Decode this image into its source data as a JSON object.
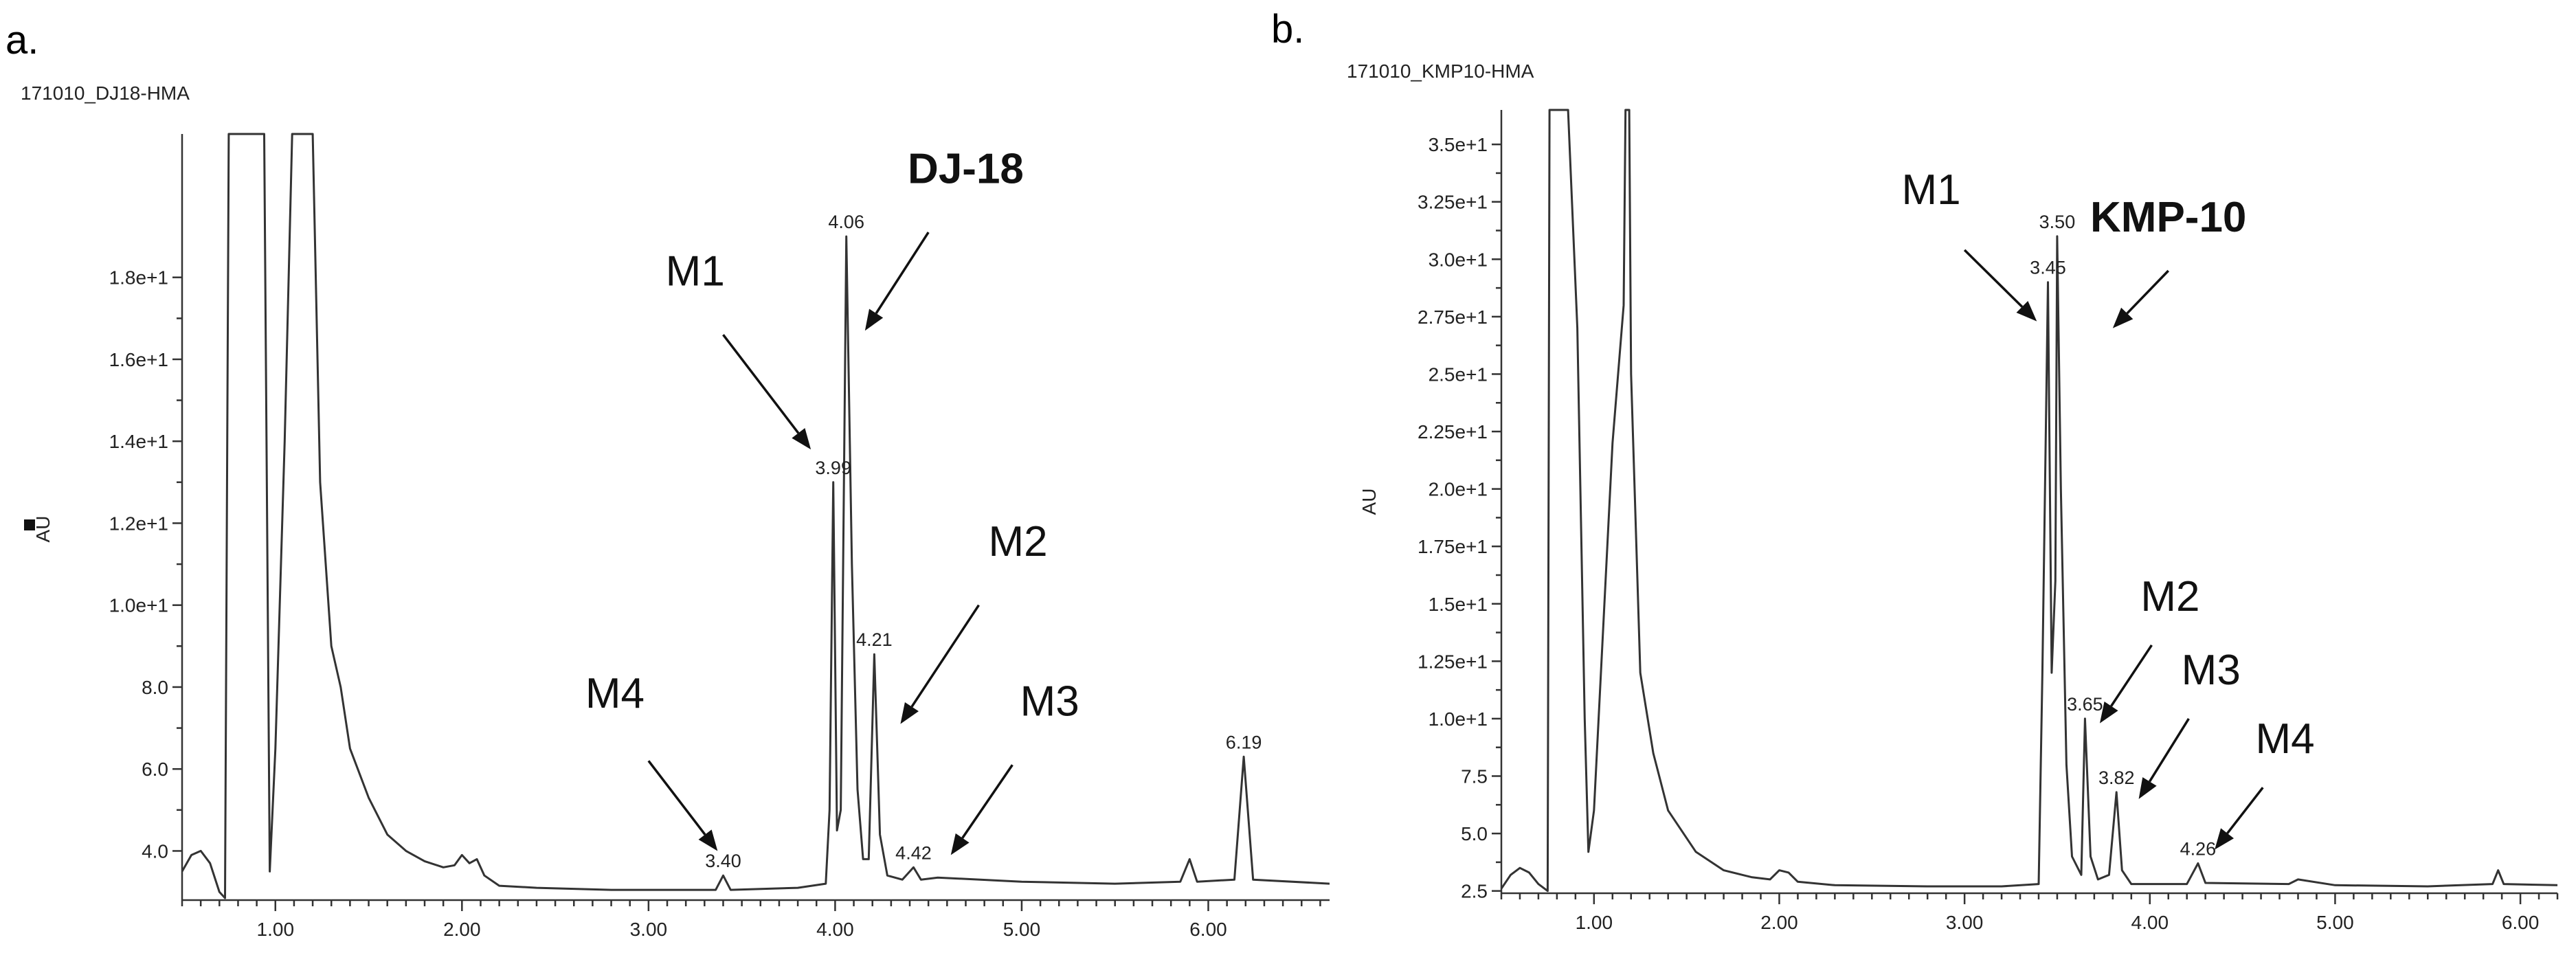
{
  "chart_data": [
    {
      "type": "line",
      "panel_label": "a.",
      "sample_id": "171010_DJ18-HMA",
      "ylabel": "AU",
      "xlim": [
        0.5,
        6.65
      ],
      "ylim": [
        2.8,
        21.5
      ],
      "x_ticks": [
        1.0,
        2.0,
        3.0,
        4.0,
        5.0,
        6.0
      ],
      "x_tick_labels": [
        "1.00",
        "2.00",
        "3.00",
        "4.00",
        "5.00",
        "6.00"
      ],
      "y_ticks": [
        4.0,
        6.0,
        8.0,
        10.0,
        12.0,
        14.0,
        16.0,
        18.0
      ],
      "y_tick_labels": [
        "4.0",
        "6.0",
        "8.0",
        "1.0e+1",
        "1.2e+1",
        "1.4e+1",
        "1.6e+1",
        "1.8e+1"
      ],
      "baseline": 3.1,
      "series": [
        {
          "name": "chromatogram",
          "points": [
            [
              0.5,
              3.5
            ],
            [
              0.55,
              3.9
            ],
            [
              0.6,
              4.0
            ],
            [
              0.65,
              3.7
            ],
            [
              0.7,
              3.0
            ],
            [
              0.73,
              2.85
            ],
            [
              0.75,
              21.5
            ],
            [
              0.94,
              21.5
            ],
            [
              0.97,
              3.5
            ],
            [
              1.0,
              6.5
            ],
            [
              1.05,
              14.0
            ],
            [
              1.09,
              21.5
            ],
            [
              1.2,
              21.5
            ],
            [
              1.24,
              13.0
            ],
            [
              1.3,
              9.0
            ],
            [
              1.35,
              8.0
            ],
            [
              1.4,
              6.5
            ],
            [
              1.5,
              5.3
            ],
            [
              1.6,
              4.4
            ],
            [
              1.7,
              4.0
            ],
            [
              1.8,
              3.75
            ],
            [
              1.9,
              3.6
            ],
            [
              1.96,
              3.65
            ],
            [
              2.0,
              3.9
            ],
            [
              2.04,
              3.7
            ],
            [
              2.08,
              3.8
            ],
            [
              2.12,
              3.4
            ],
            [
              2.2,
              3.15
            ],
            [
              2.4,
              3.1
            ],
            [
              2.8,
              3.05
            ],
            [
              3.2,
              3.05
            ],
            [
              3.36,
              3.05
            ],
            [
              3.4,
              3.4
            ],
            [
              3.44,
              3.05
            ],
            [
              3.8,
              3.1
            ],
            [
              3.95,
              3.2
            ],
            [
              3.97,
              5.0
            ],
            [
              3.99,
              13.0
            ],
            [
              4.01,
              4.5
            ],
            [
              4.03,
              5.0
            ],
            [
              4.06,
              19.0
            ],
            [
              4.09,
              11.0
            ],
            [
              4.12,
              5.5
            ],
            [
              4.15,
              3.8
            ],
            [
              4.18,
              3.8
            ],
            [
              4.21,
              8.8
            ],
            [
              4.24,
              4.4
            ],
            [
              4.28,
              3.4
            ],
            [
              4.36,
              3.3
            ],
            [
              4.42,
              3.6
            ],
            [
              4.46,
              3.3
            ],
            [
              4.55,
              3.35
            ],
            [
              5.0,
              3.25
            ],
            [
              5.5,
              3.2
            ],
            [
              5.85,
              3.25
            ],
            [
              5.9,
              3.8
            ],
            [
              5.94,
              3.25
            ],
            [
              6.14,
              3.3
            ],
            [
              6.19,
              6.3
            ],
            [
              6.24,
              3.3
            ],
            [
              6.65,
              3.2
            ]
          ]
        }
      ],
      "flat_tops": [
        [
          0.75,
          0.94
        ],
        [
          1.09,
          1.2
        ]
      ],
      "peak_labels": [
        {
          "text": "4.06",
          "x": 4.06,
          "y": 19.0
        },
        {
          "text": "3.99",
          "x": 3.99,
          "y": 13.0
        },
        {
          "text": "4.21",
          "x": 4.21,
          "y": 8.8
        },
        {
          "text": "3.40",
          "x": 3.4,
          "y": 3.4
        },
        {
          "text": "4.42",
          "x": 4.42,
          "y": 3.6
        },
        {
          "text": "6.19",
          "x": 6.19,
          "y": 6.3
        }
      ],
      "annotations": [
        {
          "text": "DJ-18",
          "bold": true,
          "x": 4.7,
          "y": 20.3,
          "ax": 4.5,
          "ay": 19.1,
          "bx": 4.16,
          "by": 16.7
        },
        {
          "text": "M1",
          "bold": false,
          "x": 3.25,
          "y": 17.8,
          "ax": 3.4,
          "ay": 16.6,
          "bx": 3.87,
          "by": 13.8
        },
        {
          "text": "M2",
          "bold": false,
          "x": 4.98,
          "y": 11.2,
          "ax": 4.77,
          "ay": 10.0,
          "bx": 4.35,
          "by": 7.1
        },
        {
          "text": "M4",
          "bold": false,
          "x": 2.82,
          "y": 7.5,
          "ax": 3.0,
          "ay": 6.2,
          "bx": 3.37,
          "by": 4.0
        },
        {
          "text": "M3",
          "bold": false,
          "x": 5.15,
          "y": 7.3,
          "ax": 4.95,
          "ay": 6.1,
          "bx": 4.62,
          "by": 3.9
        }
      ]
    },
    {
      "type": "line",
      "panel_label": "b.",
      "sample_id": "171010_KMP10-HMA",
      "ylabel": "AU",
      "xlim": [
        0.5,
        6.2
      ],
      "ylim": [
        2.4,
        36.5
      ],
      "x_ticks": [
        1.0,
        2.0,
        3.0,
        4.0,
        5.0,
        6.0
      ],
      "x_tick_labels": [
        "1.00",
        "2.00",
        "3.00",
        "4.00",
        "5.00",
        "6.00"
      ],
      "y_ticks": [
        2.5,
        5.0,
        7.5,
        10.0,
        12.5,
        15.0,
        17.5,
        20.0,
        22.5,
        25.0,
        27.5,
        30.0,
        32.5,
        35.0
      ],
      "y_tick_labels": [
        "2.5",
        "5.0",
        "7.5",
        "1.0e+1",
        "1.25e+1",
        "1.5e+1",
        "1.75e+1",
        "2.0e+1",
        "2.25e+1",
        "2.5e+1",
        "2.75e+1",
        "3.0e+1",
        "3.25e+1",
        "3.5e+1"
      ],
      "baseline": 2.7,
      "series": [
        {
          "name": "chromatogram",
          "points": [
            [
              0.5,
              2.6
            ],
            [
              0.55,
              3.2
            ],
            [
              0.6,
              3.5
            ],
            [
              0.65,
              3.3
            ],
            [
              0.7,
              2.8
            ],
            [
              0.75,
              2.5
            ],
            [
              0.76,
              36.5
            ],
            [
              0.86,
              36.5
            ],
            [
              0.91,
              27.0
            ],
            [
              0.95,
              10.0
            ],
            [
              0.97,
              4.2
            ],
            [
              1.0,
              6.0
            ],
            [
              1.05,
              14.0
            ],
            [
              1.1,
              22.0
            ],
            [
              1.16,
              28.0
            ],
            [
              1.17,
              36.5
            ],
            [
              1.19,
              36.5
            ],
            [
              1.2,
              25.0
            ],
            [
              1.25,
              12.0
            ],
            [
              1.32,
              8.5
            ],
            [
              1.4,
              6.0
            ],
            [
              1.55,
              4.2
            ],
            [
              1.7,
              3.4
            ],
            [
              1.85,
              3.1
            ],
            [
              1.95,
              3.0
            ],
            [
              2.0,
              3.4
            ],
            [
              2.05,
              3.3
            ],
            [
              2.1,
              2.9
            ],
            [
              2.3,
              2.75
            ],
            [
              2.8,
              2.7
            ],
            [
              3.2,
              2.7
            ],
            [
              3.4,
              2.8
            ],
            [
              3.42,
              12.0
            ],
            [
              3.45,
              29.0
            ],
            [
              3.47,
              12.0
            ],
            [
              3.49,
              16.0
            ],
            [
              3.5,
              31.0
            ],
            [
              3.52,
              20.0
            ],
            [
              3.55,
              8.0
            ],
            [
              3.58,
              4.0
            ],
            [
              3.63,
              3.2
            ],
            [
              3.65,
              10.0
            ],
            [
              3.68,
              4.0
            ],
            [
              3.72,
              3.0
            ],
            [
              3.78,
              3.2
            ],
            [
              3.82,
              6.8
            ],
            [
              3.85,
              3.4
            ],
            [
              3.9,
              2.8
            ],
            [
              4.2,
              2.8
            ],
            [
              4.26,
              3.7
            ],
            [
              4.3,
              2.85
            ],
            [
              4.75,
              2.8
            ],
            [
              4.8,
              3.0
            ],
            [
              5.0,
              2.75
            ],
            [
              5.5,
              2.7
            ],
            [
              5.85,
              2.8
            ],
            [
              5.88,
              3.4
            ],
            [
              5.91,
              2.8
            ],
            [
              6.2,
              2.75
            ]
          ]
        }
      ],
      "flat_tops": [
        [
          0.76,
          0.86
        ],
        [
          1.17,
          1.19
        ]
      ],
      "peak_labels": [
        {
          "text": "3.50",
          "x": 3.5,
          "y": 31.0
        },
        {
          "text": "3.45",
          "x": 3.45,
          "y": 29.0
        },
        {
          "text": "3.65",
          "x": 3.65,
          "y": 10.0
        },
        {
          "text": "3.82",
          "x": 3.82,
          "y": 6.8
        },
        {
          "text": "4.26",
          "x": 4.26,
          "y": 3.7
        }
      ],
      "annotations": [
        {
          "text": "M1",
          "bold": false,
          "x": 2.82,
          "y": 32.4,
          "ax": 3.0,
          "ay": 30.4,
          "bx": 3.39,
          "by": 27.3
        },
        {
          "text": "KMP-10",
          "bold": true,
          "x": 4.1,
          "y": 31.2,
          "ax": 4.1,
          "ay": 29.5,
          "bx": 3.8,
          "by": 27.0
        },
        {
          "text": "M2",
          "bold": false,
          "x": 4.11,
          "y": 14.7,
          "ax": 4.01,
          "ay": 13.2,
          "bx": 3.73,
          "by": 9.8
        },
        {
          "text": "M3",
          "bold": false,
          "x": 4.33,
          "y": 11.5,
          "ax": 4.21,
          "ay": 10.0,
          "bx": 3.94,
          "by": 6.5
        },
        {
          "text": "M4",
          "bold": false,
          "x": 4.73,
          "y": 8.5,
          "ax": 4.61,
          "ay": 7.0,
          "bx": 4.35,
          "by": 4.3
        }
      ]
    }
  ]
}
